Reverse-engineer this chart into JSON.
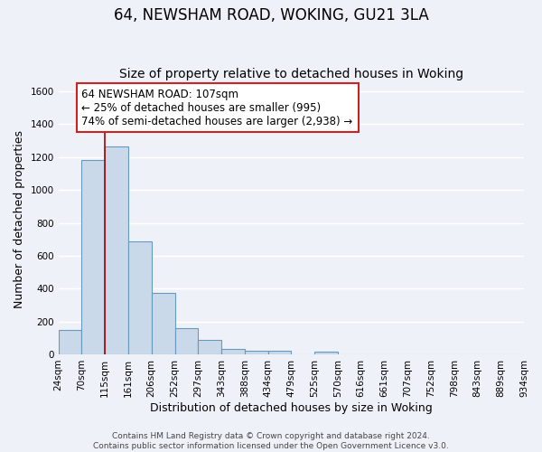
{
  "title": "64, NEWSHAM ROAD, WOKING, GU21 3LA",
  "subtitle": "Size of property relative to detached houses in Woking",
  "xlabel": "Distribution of detached houses by size in Woking",
  "ylabel": "Number of detached properties",
  "footer_lines": [
    "Contains HM Land Registry data © Crown copyright and database right 2024.",
    "Contains public sector information licensed under the Open Government Licence v3.0."
  ],
  "bin_labels": [
    "24sqm",
    "70sqm",
    "115sqm",
    "161sqm",
    "206sqm",
    "252sqm",
    "297sqm",
    "343sqm",
    "388sqm",
    "434sqm",
    "479sqm",
    "525sqm",
    "570sqm",
    "616sqm",
    "661sqm",
    "707sqm",
    "752sqm",
    "798sqm",
    "843sqm",
    "889sqm",
    "934sqm"
  ],
  "bar_heights": [
    150,
    1180,
    1265,
    690,
    375,
    160,
    90,
    35,
    20,
    20,
    0,
    15,
    0,
    0,
    0,
    0,
    0,
    0,
    0,
    0
  ],
  "bar_color": "#c9d9ea",
  "bar_edge_color": "#6699bb",
  "vline_x": 2,
  "vline_color": "#aa0000",
  "annotation_text": "64 NEWSHAM ROAD: 107sqm\n← 25% of detached houses are smaller (995)\n74% of semi-detached houses are larger (2,938) →",
  "annotation_box_color": "#ffffff",
  "annotation_box_edge_color": "#cc2222",
  "ylim": [
    0,
    1650
  ],
  "yticks": [
    0,
    200,
    400,
    600,
    800,
    1000,
    1200,
    1400,
    1600
  ],
  "background_color": "#eef2f8",
  "plot_background_color": "#eef2f8",
  "grid_color": "#ffffff",
  "title_fontsize": 12,
  "subtitle_fontsize": 10,
  "axis_label_fontsize": 9,
  "tick_fontsize": 7.5,
  "annotation_fontsize": 8.5,
  "footer_fontsize": 6.5
}
